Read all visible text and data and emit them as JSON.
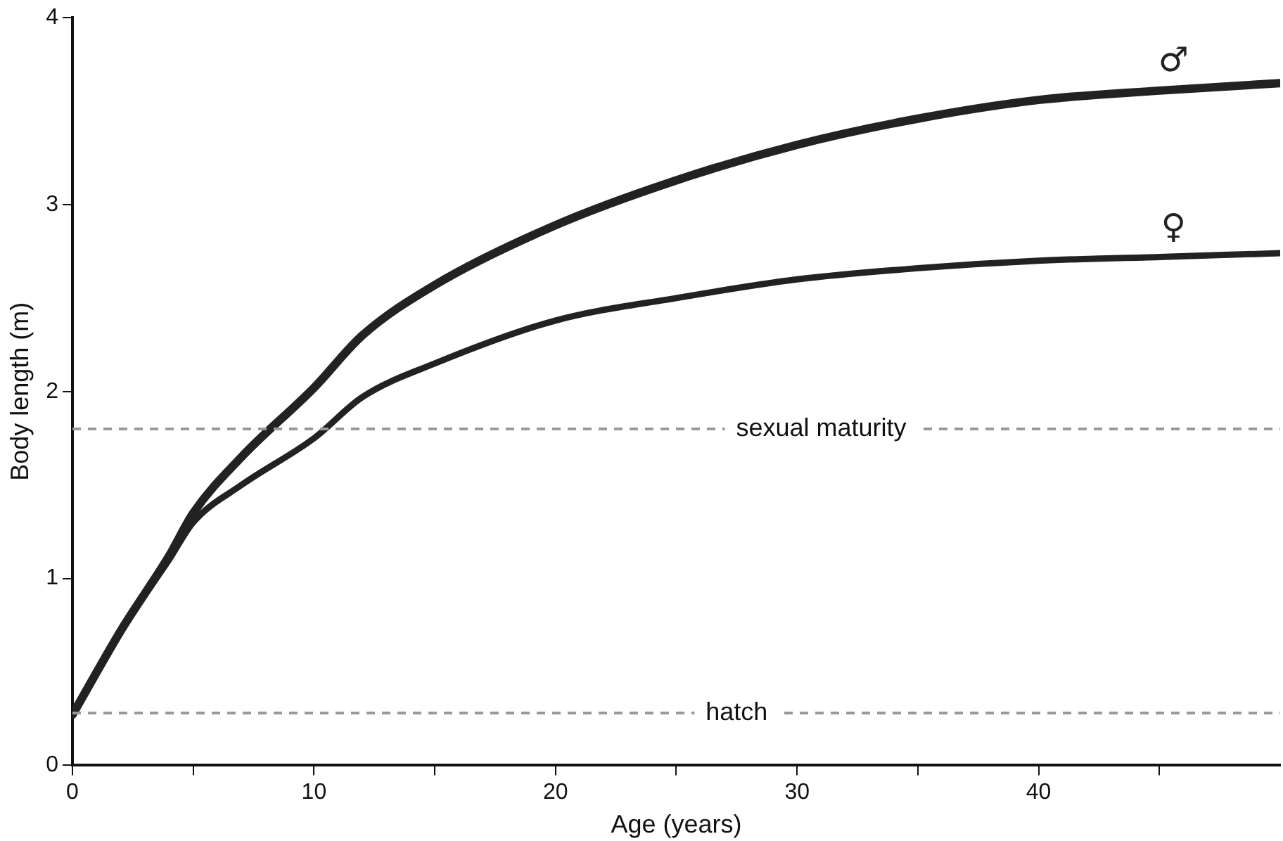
{
  "chart_data": {
    "type": "line",
    "xlabel": "Age (years)",
    "ylabel": "Body length (m)",
    "xlim": [
      0,
      50
    ],
    "xticks": [
      0,
      {
        "value": 5,
        "label": null
      },
      10,
      {
        "value": 15,
        "label": null
      },
      20,
      {
        "value": 25,
        "label": null
      },
      30,
      {
        "value": 35,
        "label": null
      },
      40,
      {
        "value": 45,
        "label": null
      }
    ],
    "ylim": [
      0,
      4
    ],
    "yticks": [
      0,
      1,
      2,
      3,
      4
    ],
    "grid": false,
    "legend": false,
    "marker": "none",
    "line_style": "solid",
    "series": [
      {
        "name": "♂",
        "color": "#222222",
        "x": [
          0,
          2,
          4,
          5,
          7,
          10,
          12,
          15,
          20,
          25,
          30,
          35,
          40,
          45,
          50
        ],
        "values": [
          0.27,
          0.72,
          1.12,
          1.35,
          1.65,
          2.02,
          2.3,
          2.57,
          2.89,
          3.13,
          3.32,
          3.46,
          3.56,
          3.61,
          3.65
        ]
      },
      {
        "name": "♀",
        "color": "#222222",
        "x": [
          0,
          2,
          4,
          5,
          7,
          10,
          12,
          15,
          20,
          25,
          30,
          35,
          40,
          45,
          50
        ],
        "values": [
          0.27,
          0.72,
          1.1,
          1.3,
          1.5,
          1.75,
          1.97,
          2.15,
          2.38,
          2.5,
          2.6,
          2.66,
          2.7,
          2.72,
          2.74
        ]
      }
    ],
    "ref_lines": [
      {
        "axis": "y",
        "value": 1.8,
        "label": "sexual maturity",
        "color": "#999999",
        "line_style": "dashed"
      },
      {
        "axis": "y",
        "value": 0.28,
        "label": "hatch",
        "color": "#999999",
        "line_style": "dashed"
      }
    ]
  }
}
